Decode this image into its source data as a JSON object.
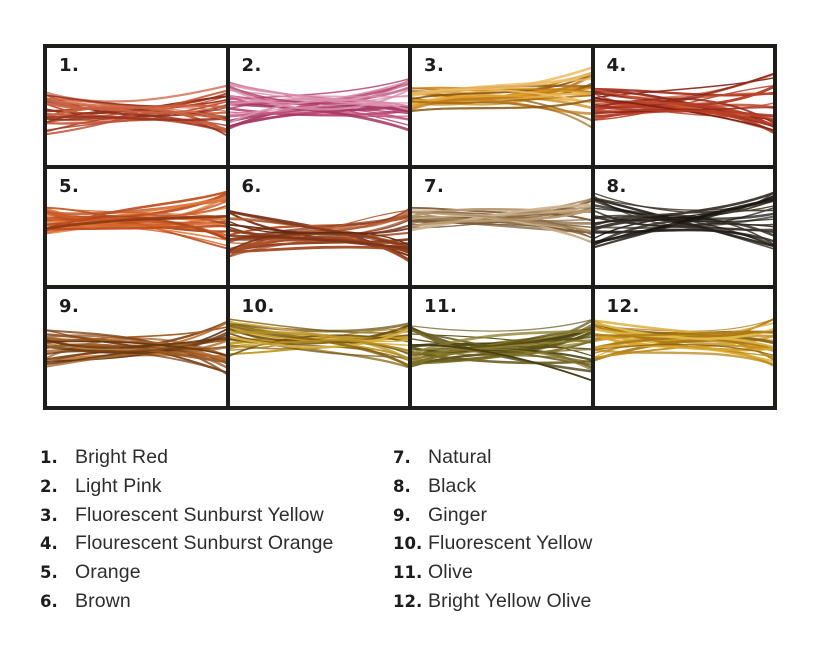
{
  "page": {
    "background": "#ffffff"
  },
  "grid": {
    "border_color": "#1d1d1b",
    "cell_background": "#ffffff",
    "columns": 4,
    "rows": 3,
    "swatches": [
      {
        "number": "1.",
        "name": "Bright Red",
        "colors": [
          "#b2442a",
          "#c35332",
          "#9a3520",
          "#d4704e",
          "#8c2f1c",
          "#c9603f"
        ]
      },
      {
        "number": "2.",
        "name": "Light Pink",
        "colors": [
          "#b84a74",
          "#a83763",
          "#cb6790",
          "#8e2c50",
          "#d98fac",
          "#c25580"
        ]
      },
      {
        "number": "3.",
        "name": "Fluorescent Sunburst Yellow",
        "colors": [
          "#d18f1f",
          "#c07c16",
          "#e3a737",
          "#a96c12",
          "#8a570e",
          "#edbd63"
        ]
      },
      {
        "number": "4.",
        "name": "Flourescent Sunburst Orange",
        "colors": [
          "#a93322",
          "#bf4527",
          "#93281a",
          "#cc5a35",
          "#7e2015",
          "#b63d24"
        ]
      },
      {
        "number": "5.",
        "name": "Orange",
        "colors": [
          "#c05020",
          "#d26428",
          "#a8431a",
          "#e07a3a",
          "#913a16",
          "#cb5b24"
        ]
      },
      {
        "number": "6.",
        "name": "Brown",
        "colors": [
          "#8e3e1e",
          "#a34a23",
          "#7a3318",
          "#b65c2f",
          "#64290f",
          "#974522"
        ]
      },
      {
        "number": "7.",
        "name": "Natural",
        "colors": [
          "#a8895f",
          "#b99a73",
          "#8c6d47",
          "#cdb38f",
          "#7a5c3a",
          "#997a52"
        ]
      },
      {
        "number": "8.",
        "name": "Black",
        "colors": [
          "#2a241d",
          "#3a332a",
          "#1c1813",
          "#453c2e",
          "#16130f",
          "#332c23"
        ]
      },
      {
        "number": "9.",
        "name": "Ginger",
        "colors": [
          "#9a5a24",
          "#b06a2a",
          "#7d4416",
          "#c07c38",
          "#5f3310",
          "#a66228"
        ]
      },
      {
        "number": "10.",
        "name": "Fluorescent Yellow",
        "colors": [
          "#ab831e",
          "#c59c28",
          "#8a6815",
          "#d9b143",
          "#6f5310",
          "#b89126"
        ]
      },
      {
        "number": "11.",
        "name": "Olive",
        "colors": [
          "#6e6220",
          "#7e7026",
          "#585013",
          "#8f8030",
          "#474012",
          "#665a1c"
        ]
      },
      {
        "number": "12.",
        "name": "Bright Yellow Olive",
        "colors": [
          "#c6921c",
          "#d8a72c",
          "#a87916",
          "#e5bc4a",
          "#8a6211",
          "#b98617"
        ]
      }
    ]
  },
  "legend": {
    "text_color": "#2d2d2d",
    "left_column_indices": [
      0,
      1,
      2,
      3,
      4,
      5
    ],
    "right_column_indices": [
      6,
      7,
      8,
      9,
      10,
      11
    ]
  }
}
